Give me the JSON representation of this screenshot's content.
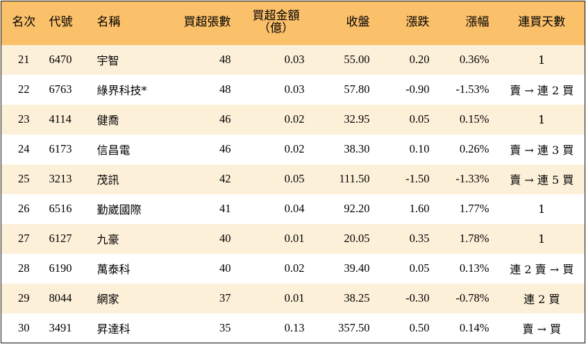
{
  "headers": {
    "rank": "名次",
    "code": "代號",
    "name": "名稱",
    "net_buy_shares": "買超張數",
    "net_buy_amount_line1": "買超金額",
    "net_buy_amount_line2": "（億）",
    "close": "收盤",
    "change": "漲跌",
    "change_pct": "漲幅",
    "consecutive_buy_days": "連買天數"
  },
  "colors": {
    "header_bg": "#fbc06a",
    "stripe_bg": "#fdf0d9",
    "up": "#ee1111",
    "down": "#0a7a0a"
  },
  "rows": [
    {
      "rank": "21",
      "code": "6470",
      "name": "宇智",
      "shares": "48",
      "amount": "0.03",
      "close": "55.00",
      "change": "0.20",
      "pct": "0.36%",
      "days": "1",
      "dir": "up"
    },
    {
      "rank": "22",
      "code": "6763",
      "name": "綠界科技*",
      "shares": "48",
      "amount": "0.03",
      "close": "57.80",
      "change": "-0.90",
      "pct": "-1.53%",
      "days": "賣 → 連 2 買",
      "dir": "down"
    },
    {
      "rank": "23",
      "code": "4114",
      "name": "健喬",
      "shares": "46",
      "amount": "0.02",
      "close": "32.95",
      "change": "0.05",
      "pct": "0.15%",
      "days": "1",
      "dir": "up"
    },
    {
      "rank": "24",
      "code": "6173",
      "name": "信昌電",
      "shares": "46",
      "amount": "0.02",
      "close": "38.30",
      "change": "0.10",
      "pct": "0.26%",
      "days": "賣 → 連 3 買",
      "dir": "up"
    },
    {
      "rank": "25",
      "code": "3213",
      "name": "茂訊",
      "shares": "42",
      "amount": "0.05",
      "close": "111.50",
      "change": "-1.50",
      "pct": "-1.33%",
      "days": "賣 → 連 5 買",
      "dir": "down"
    },
    {
      "rank": "26",
      "code": "6516",
      "name": "勤崴國際",
      "shares": "41",
      "amount": "0.04",
      "close": "92.20",
      "change": "1.60",
      "pct": "1.77%",
      "days": "1",
      "dir": "up"
    },
    {
      "rank": "27",
      "code": "6127",
      "name": "九豪",
      "shares": "40",
      "amount": "0.01",
      "close": "20.05",
      "change": "0.35",
      "pct": "1.78%",
      "days": "1",
      "dir": "up"
    },
    {
      "rank": "28",
      "code": "6190",
      "name": "萬泰科",
      "shares": "40",
      "amount": "0.02",
      "close": "39.40",
      "change": "0.05",
      "pct": "0.13%",
      "days": "連 2 賣 → 買",
      "dir": "up"
    },
    {
      "rank": "29",
      "code": "8044",
      "name": "網家",
      "shares": "37",
      "amount": "0.01",
      "close": "38.25",
      "change": "-0.30",
      "pct": "-0.78%",
      "days": "連 2 買",
      "dir": "down"
    },
    {
      "rank": "30",
      "code": "3491",
      "name": "昇達科",
      "shares": "35",
      "amount": "0.13",
      "close": "357.50",
      "change": "0.50",
      "pct": "0.14%",
      "days": "賣 → 買",
      "dir": "up"
    }
  ]
}
